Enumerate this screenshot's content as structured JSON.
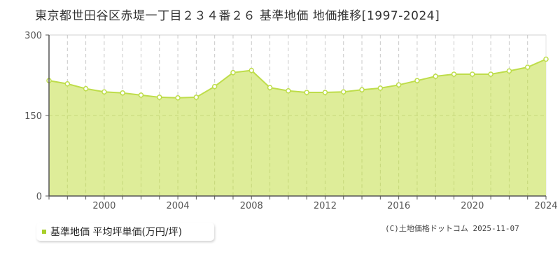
{
  "title": "東京都世田谷区赤堤一丁目２３４番２６ 基準地価 地価推移[1997-2024]",
  "legend": {
    "label": "基準地価 平均坪単価(万円/坪)",
    "color": "#a8cf2a"
  },
  "copyright": "(C)土地価格ドットコム 2025-11-07",
  "colors": {
    "fill": "#dcec94",
    "line": "#bedd4a",
    "marker_stroke": "#bedd4a",
    "marker_fill": "#ffffff",
    "grid": "#c8c8c8",
    "axis": "#555555"
  },
  "chart_data": {
    "type": "area",
    "title": "東京都世田谷区赤堤一丁目２３４番２６ 基準地価 地価推移[1997-2024]",
    "xlabel": "",
    "ylabel": "",
    "ylim": [
      0,
      300
    ],
    "yticks": [
      0,
      150,
      300
    ],
    "xticks": [
      2000,
      2004,
      2008,
      2012,
      2016,
      2020,
      2024
    ],
    "x": [
      1997,
      1998,
      1999,
      2000,
      2001,
      2002,
      2003,
      2004,
      2005,
      2006,
      2007,
      2008,
      2009,
      2010,
      2011,
      2012,
      2013,
      2014,
      2015,
      2016,
      2017,
      2018,
      2019,
      2020,
      2021,
      2022,
      2023,
      2024
    ],
    "series": [
      {
        "name": "基準地価 平均坪単価(万円/坪)",
        "values": [
          215,
          209,
          200,
          194,
          192,
          188,
          184,
          183,
          184,
          204,
          230,
          234,
          202,
          196,
          193,
          193,
          194,
          198,
          201,
          207,
          215,
          223,
          227,
          227,
          227,
          233,
          240,
          255
        ]
      }
    ],
    "grid": {
      "vertical_dashed": true,
      "horizontal_at": [
        150
      ]
    },
    "legend_position": "bottom-left"
  }
}
